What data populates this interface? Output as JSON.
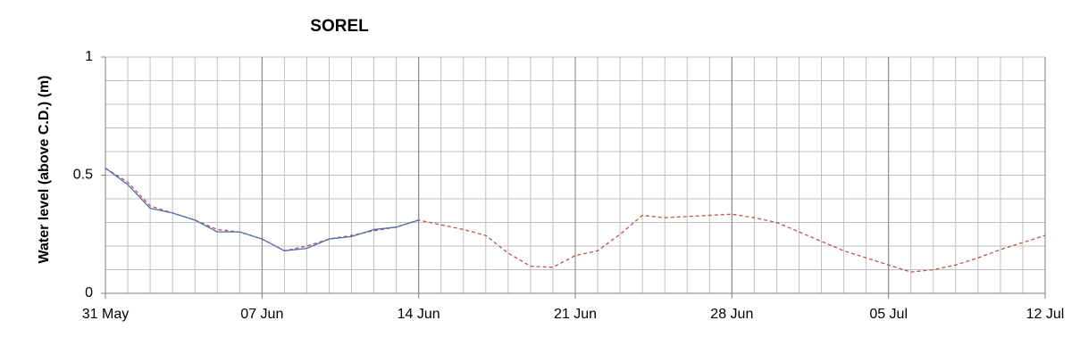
{
  "chart_data": {
    "type": "line",
    "title": "SOREL",
    "ylabel": "Water level (above C.D.) (m)",
    "x": [
      0,
      1,
      2,
      3,
      4,
      5,
      6,
      7,
      8,
      9,
      10,
      11,
      12,
      13,
      14,
      15,
      16,
      17,
      18,
      19,
      20,
      21,
      22,
      23,
      24,
      25,
      26,
      27,
      28,
      29,
      30,
      31,
      32,
      33,
      34,
      35,
      36,
      37,
      38,
      39,
      40,
      41,
      42
    ],
    "series": [
      {
        "color": "#c0504d",
        "dashed": true,
        "values": [
          0.53,
          0.47,
          0.37,
          0.34,
          0.31,
          0.27,
          0.26,
          0.23,
          0.18,
          0.2,
          0.23,
          0.245,
          0.265,
          0.28,
          0.31,
          0.29,
          0.27,
          0.245,
          0.17,
          0.115,
          0.11,
          0.16,
          0.18,
          0.25,
          0.33,
          0.32,
          0.325,
          0.33,
          0.335,
          0.32,
          0.3,
          0.26,
          0.22,
          0.18,
          0.15,
          0.12,
          0.09,
          0.1,
          0.12,
          0.15,
          0.185,
          0.215,
          0.245
        ]
      },
      {
        "color": "#4f6fb0",
        "dashed": false,
        "values": [
          0.53,
          0.46,
          0.36,
          0.34,
          0.31,
          0.26,
          0.26,
          0.23,
          0.18,
          0.19,
          0.23,
          0.24,
          0.27,
          0.28,
          0.31,
          null,
          null,
          null,
          null,
          null,
          null,
          null,
          null,
          null,
          null,
          null,
          null,
          null,
          null,
          null,
          null,
          null,
          null,
          null,
          null,
          null,
          null,
          null,
          null,
          null,
          null,
          null,
          null
        ]
      }
    ],
    "xlim": [
      0,
      42
    ],
    "xticks": [
      {
        "value": 0,
        "label": "31 May"
      },
      {
        "value": 7,
        "label": "07 Jun"
      },
      {
        "value": 14,
        "label": "14 Jun"
      },
      {
        "value": 21,
        "label": "21 Jun"
      },
      {
        "value": 28,
        "label": "28 Jun"
      },
      {
        "value": 35,
        "label": "05 Jul"
      },
      {
        "value": 42,
        "label": "12 Jul"
      }
    ],
    "xminorticks": [
      0,
      1,
      2,
      3,
      4,
      5,
      6,
      7,
      8,
      9,
      10,
      11,
      12,
      13,
      14,
      15,
      16,
      17,
      18,
      19,
      20,
      21,
      22,
      23,
      24,
      25,
      26,
      27,
      28,
      29,
      30,
      31,
      32,
      33,
      34,
      35,
      36,
      37,
      38,
      39,
      40,
      41,
      42
    ],
    "ylim": [
      0,
      1
    ],
    "yticks": [
      0,
      0.5,
      1
    ],
    "yminorticks": [
      0,
      0.1,
      0.2,
      0.3,
      0.4,
      0.5,
      0.6,
      0.7,
      0.8,
      0.9,
      1
    ],
    "grid": true
  }
}
